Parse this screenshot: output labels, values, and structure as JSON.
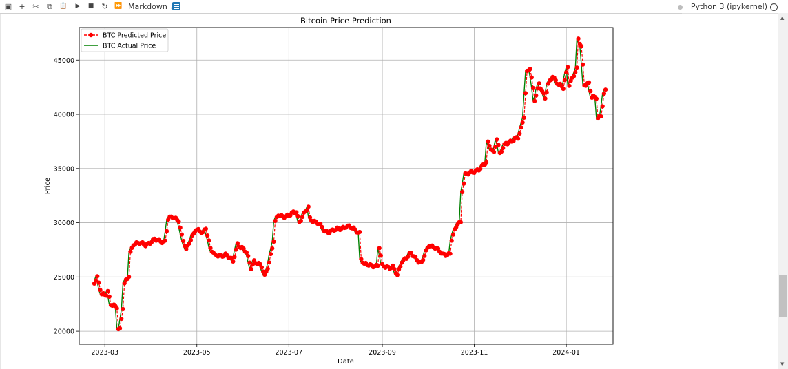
{
  "toolbar": {
    "buttons": [
      {
        "name": "save-icon",
        "glyph": "▣"
      },
      {
        "name": "add-cell-icon",
        "glyph": "+"
      },
      {
        "name": "cut-icon",
        "glyph": "✂"
      },
      {
        "name": "copy-icon",
        "glyph": "⧉"
      },
      {
        "name": "paste-icon",
        "glyph": "📋"
      },
      {
        "name": "run-icon",
        "glyph": "▶"
      },
      {
        "name": "stop-icon",
        "glyph": "■"
      },
      {
        "name": "restart-icon",
        "glyph": "↻"
      },
      {
        "name": "run-all-icon",
        "glyph": "⏩"
      }
    ],
    "cell_type": "Markdown",
    "kernel_name": "Python 3 (ipykernel)"
  },
  "colors": {
    "predicted": "#ff0000",
    "actual": "#008000",
    "grid": "#b0b0b0"
  },
  "chart_data": {
    "type": "line",
    "title": "Bitcoin Price Prediction",
    "xlabel": "Date",
    "ylabel": "Price",
    "x_range": [
      "2023-02-12",
      "2024-02-01"
    ],
    "ylim": [
      18800,
      48000
    ],
    "x_ticks": [
      {
        "date": "2023-03-01",
        "label": "2023-03"
      },
      {
        "date": "2023-05-01",
        "label": "2023-05"
      },
      {
        "date": "2023-07-01",
        "label": "2023-07"
      },
      {
        "date": "2023-09-01",
        "label": "2023-09"
      },
      {
        "date": "2023-11-01",
        "label": "2023-11"
      },
      {
        "date": "2024-01-01",
        "label": "2024-01"
      }
    ],
    "y_ticks": [
      20000,
      25000,
      30000,
      35000,
      40000,
      45000
    ],
    "grid": true,
    "legend": "upper left",
    "start_date": "2023-02-22",
    "end_date": "2024-01-27",
    "series": [
      {
        "name": "BTC Predicted Price",
        "style": "dashed-red-dots",
        "key_points": [
          [
            "2023-02-22",
            24400
          ],
          [
            "2023-02-24",
            24900
          ],
          [
            "2023-02-27",
            23500
          ],
          [
            "2023-03-02",
            23400
          ],
          [
            "2023-03-03",
            23600
          ],
          [
            "2023-03-05",
            22400
          ],
          [
            "2023-03-09",
            22300
          ],
          [
            "2023-03-10",
            20300
          ],
          [
            "2023-03-11",
            20200
          ],
          [
            "2023-03-13",
            22100
          ],
          [
            "2023-03-14",
            24300
          ],
          [
            "2023-03-17",
            25100
          ],
          [
            "2023-03-18",
            27300
          ],
          [
            "2023-03-20",
            28100
          ],
          [
            "2023-03-28",
            28000
          ],
          [
            "2023-04-03",
            28400
          ],
          [
            "2023-04-10",
            28300
          ],
          [
            "2023-04-12",
            30300
          ],
          [
            "2023-04-15",
            30500
          ],
          [
            "2023-04-19",
            30300
          ],
          [
            "2023-04-21",
            28800
          ],
          [
            "2023-04-24",
            27400
          ],
          [
            "2023-04-26",
            28200
          ],
          [
            "2023-04-30",
            29400
          ],
          [
            "2023-05-05",
            29000
          ],
          [
            "2023-05-07",
            29600
          ],
          [
            "2023-05-10",
            27700
          ],
          [
            "2023-05-13",
            26900
          ],
          [
            "2023-05-20",
            27100
          ],
          [
            "2023-05-25",
            26400
          ],
          [
            "2023-05-28",
            28100
          ],
          [
            "2023-06-03",
            27200
          ],
          [
            "2023-06-06",
            25900
          ],
          [
            "2023-06-08",
            26500
          ],
          [
            "2023-06-13",
            25900
          ],
          [
            "2023-06-15",
            25100
          ],
          [
            "2023-06-18",
            26400
          ],
          [
            "2023-06-21",
            28300
          ],
          [
            "2023-06-22",
            30000
          ],
          [
            "2023-06-24",
            30700
          ],
          [
            "2023-07-01",
            30600
          ],
          [
            "2023-07-06",
            31100
          ],
          [
            "2023-07-08",
            30100
          ],
          [
            "2023-07-14",
            31400
          ],
          [
            "2023-07-15",
            30400
          ],
          [
            "2023-07-20",
            30000
          ],
          [
            "2023-07-25",
            29200
          ],
          [
            "2023-08-01",
            29300
          ],
          [
            "2023-08-08",
            29700
          ],
          [
            "2023-08-15",
            29300
          ],
          [
            "2023-08-17",
            29100
          ],
          [
            "2023-08-18",
            26700
          ],
          [
            "2023-08-20",
            26100
          ],
          [
            "2023-08-26",
            26100
          ],
          [
            "2023-08-29",
            26000
          ],
          [
            "2023-08-30",
            27700
          ],
          [
            "2023-09-01",
            26000
          ],
          [
            "2023-09-08",
            25900
          ],
          [
            "2023-09-11",
            25100
          ],
          [
            "2023-09-14",
            26500
          ],
          [
            "2023-09-20",
            27100
          ],
          [
            "2023-09-27",
            26300
          ],
          [
            "2023-10-02",
            27900
          ],
          [
            "2023-10-06",
            27800
          ],
          [
            "2023-10-11",
            27000
          ],
          [
            "2023-10-16",
            27200
          ],
          [
            "2023-10-17",
            28500
          ],
          [
            "2023-10-21",
            29900
          ],
          [
            "2023-10-23",
            30000
          ],
          [
            "2023-10-24",
            33000
          ],
          [
            "2023-10-26",
            34500
          ],
          [
            "2023-10-31",
            34600
          ],
          [
            "2023-11-04",
            35000
          ],
          [
            "2023-11-09",
            35500
          ],
          [
            "2023-11-10",
            37300
          ],
          [
            "2023-11-14",
            36500
          ],
          [
            "2023-11-16",
            37800
          ],
          [
            "2023-11-18",
            36300
          ],
          [
            "2023-11-22",
            37400
          ],
          [
            "2023-11-27",
            37600
          ],
          [
            "2023-11-30",
            37800
          ],
          [
            "2023-12-02",
            38700
          ],
          [
            "2023-12-04",
            39900
          ],
          [
            "2023-12-05",
            42000
          ],
          [
            "2023-12-06",
            43900
          ],
          [
            "2023-12-08",
            44200
          ],
          [
            "2023-12-11",
            41300
          ],
          [
            "2023-12-14",
            42900
          ],
          [
            "2023-12-18",
            41400
          ],
          [
            "2023-12-20",
            42700
          ],
          [
            "2023-12-23",
            43600
          ],
          [
            "2023-12-27",
            42700
          ],
          [
            "2023-12-30",
            42400
          ],
          [
            "2024-01-02",
            44500
          ],
          [
            "2024-01-03",
            42800
          ],
          [
            "2024-01-08",
            44100
          ],
          [
            "2024-01-09",
            46900
          ],
          [
            "2024-01-11",
            46300
          ],
          [
            "2024-01-13",
            42800
          ],
          [
            "2024-01-16",
            42800
          ],
          [
            "2024-01-18",
            41500
          ],
          [
            "2024-01-21",
            41600
          ],
          [
            "2024-01-22",
            39700
          ],
          [
            "2024-01-24",
            39900
          ],
          [
            "2024-01-26",
            41800
          ],
          [
            "2024-01-27",
            42100
          ]
        ]
      },
      {
        "name": "BTC Actual Price",
        "style": "solid-green",
        "lead_days": 1
      }
    ]
  }
}
